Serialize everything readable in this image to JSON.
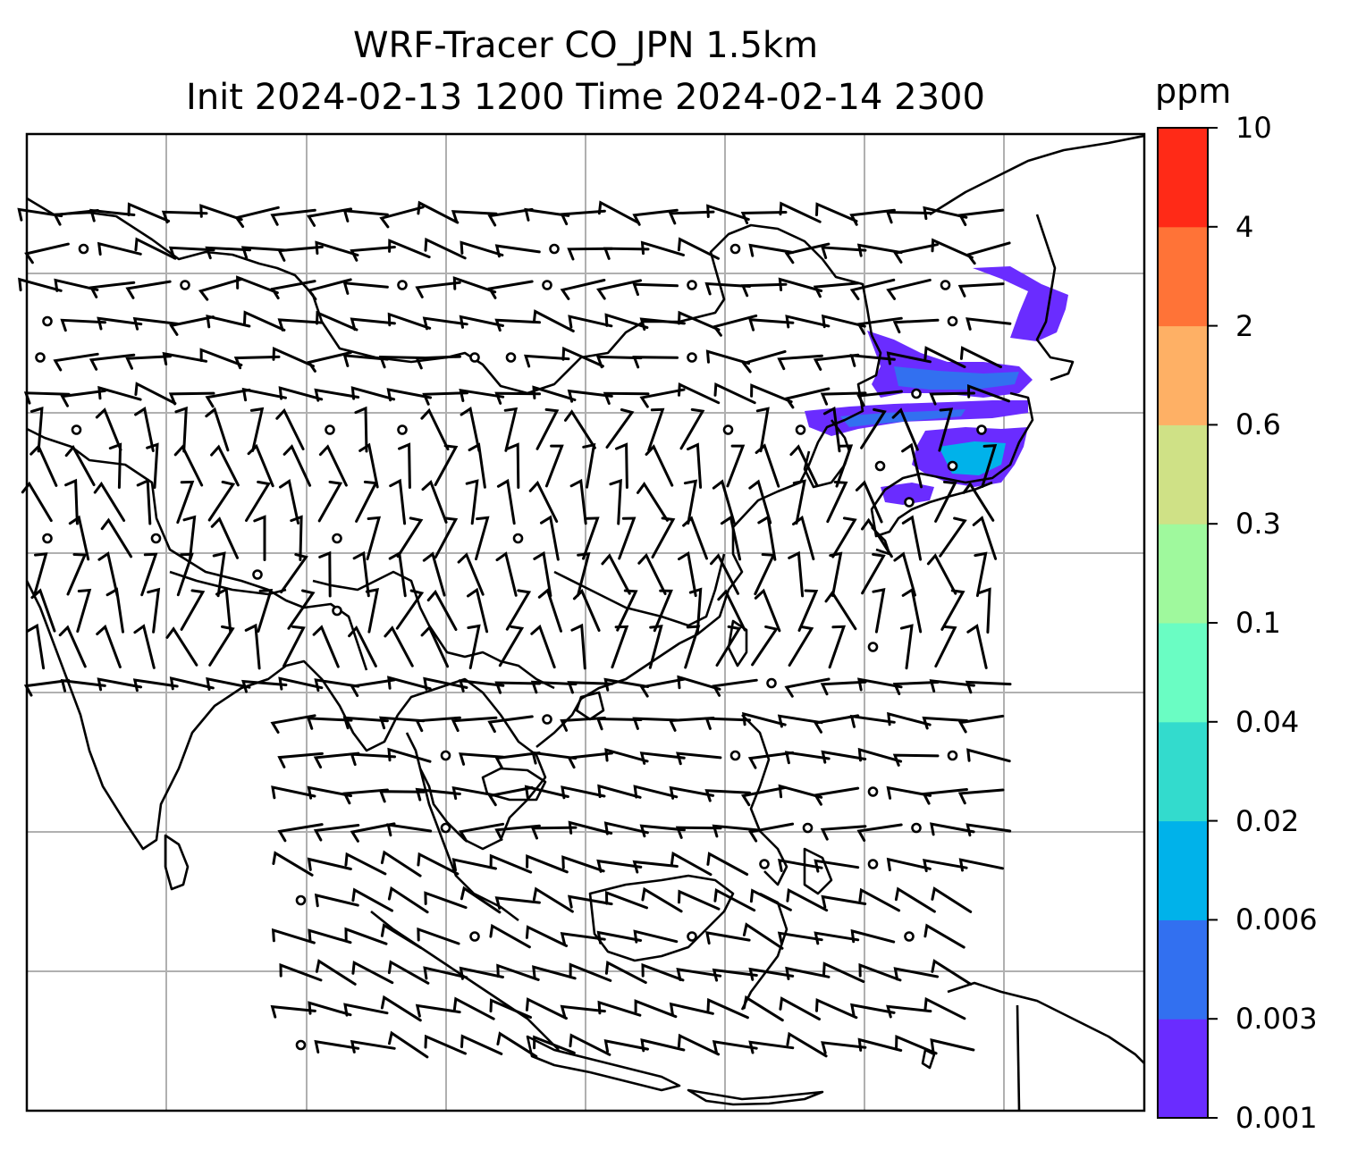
{
  "title": {
    "line1": "WRF-Tracer CO_JPN 1.5km",
    "line2": "Init 2024-02-13 1200 Time 2024-02-14 2300"
  },
  "colorbar": {
    "unit": "ppm",
    "tick_labels": [
      "0.001",
      "0.003",
      "0.006",
      "0.02",
      "0.04",
      "0.1",
      "0.3",
      "0.6",
      "2",
      "4",
      "10"
    ],
    "colors": [
      "#6a2cff",
      "#3270f0",
      "#00b2ea",
      "#33dbcd",
      "#6afdc3",
      "#9ff99d",
      "#cfe186",
      "#feb065",
      "#ff7337",
      "#ff2a17"
    ]
  },
  "map": {
    "field": "CO tracer concentration",
    "plume_colors": [
      "#6a2cff",
      "#3270f0",
      "#00b2ea"
    ],
    "grid": true,
    "wind_barbs": true,
    "calm_markers": true
  }
}
